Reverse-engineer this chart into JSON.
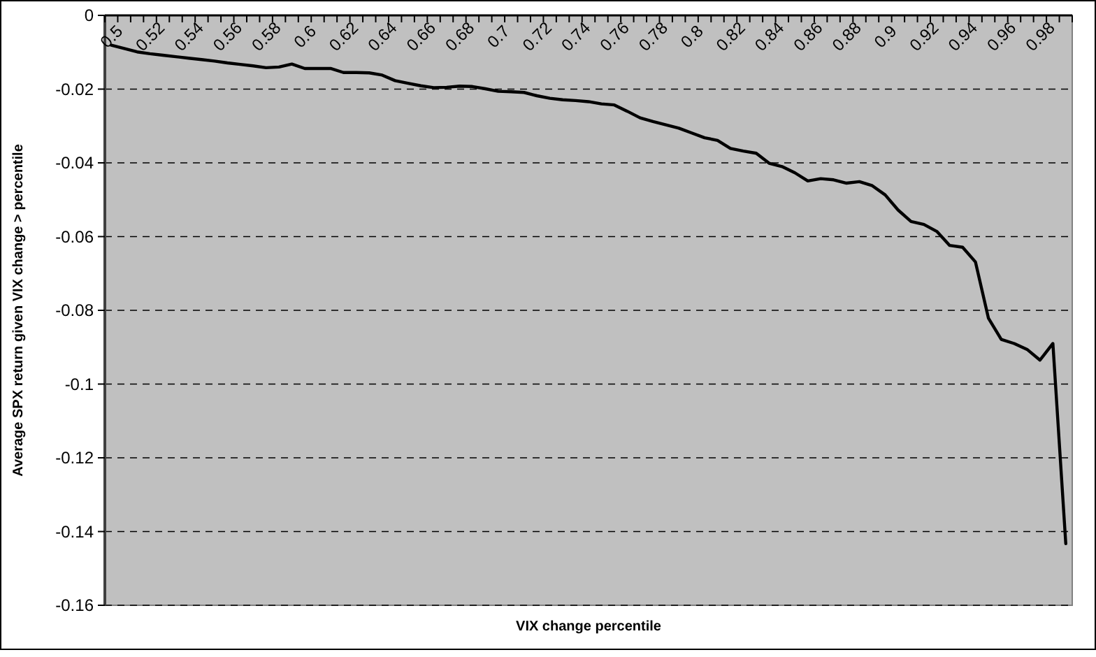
{
  "chart_data": {
    "type": "line",
    "xlabel": "VIX change percentile",
    "ylabel": "Average SPX return given VIX change > percentile",
    "categories": [
      "0.5",
      null,
      null,
      "0.52",
      null,
      null,
      "0.54",
      null,
      null,
      "0.56",
      null,
      null,
      "0.58",
      null,
      null,
      "0.6",
      null,
      null,
      "0.62",
      null,
      null,
      "0.64",
      null,
      null,
      "0.66",
      null,
      null,
      "0.68",
      null,
      null,
      "0.7",
      null,
      null,
      "0.72",
      null,
      null,
      "0.74",
      null,
      null,
      "0.76",
      null,
      null,
      "0.78",
      null,
      null,
      "0.8",
      null,
      null,
      "0.82",
      null,
      null,
      "0.84",
      null,
      null,
      "0.86",
      null,
      null,
      "0.88",
      null,
      null,
      "0.9",
      null,
      null,
      "0.92",
      null,
      null,
      "0.94",
      null,
      null,
      "0.96",
      null,
      null,
      "0.98",
      null,
      null
    ],
    "series": [
      {
        "color": "#000000",
        "values": [
          -0.0081,
          -0.009,
          -0.0099,
          -0.0104,
          -0.0108,
          -0.0112,
          -0.0116,
          -0.012,
          -0.0124,
          -0.0129,
          -0.0133,
          -0.0137,
          -0.0142,
          -0.014,
          -0.0132,
          -0.0144,
          -0.0144,
          -0.0144,
          -0.0155,
          -0.0155,
          -0.0156,
          -0.0162,
          -0.0177,
          -0.0184,
          -0.0191,
          -0.0196,
          -0.0195,
          -0.0192,
          -0.0193,
          -0.0199,
          -0.0206,
          -0.0207,
          -0.0209,
          -0.0218,
          -0.0225,
          -0.0229,
          -0.0231,
          -0.0234,
          -0.024,
          -0.0243,
          -0.026,
          -0.0278,
          -0.0288,
          -0.0297,
          -0.0306,
          -0.0319,
          -0.0332,
          -0.0339,
          -0.0361,
          -0.0368,
          -0.0374,
          -0.0401,
          -0.041,
          -0.0427,
          -0.0449,
          -0.0443,
          -0.0446,
          -0.0455,
          -0.0451,
          -0.0462,
          -0.0487,
          -0.0528,
          -0.0559,
          -0.0567,
          -0.0586,
          -0.0624,
          -0.0629,
          -0.0669,
          -0.0821,
          -0.0879,
          -0.089,
          -0.0906,
          -0.0935,
          -0.089,
          -0.1433
        ]
      }
    ],
    "ylim": [
      -0.16,
      0
    ],
    "yticks": [
      0,
      -0.02,
      -0.04,
      -0.06,
      -0.08,
      -0.1,
      -0.12,
      -0.14,
      -0.16
    ],
    "grid": "y",
    "line_style": "solid",
    "marker": "none"
  }
}
